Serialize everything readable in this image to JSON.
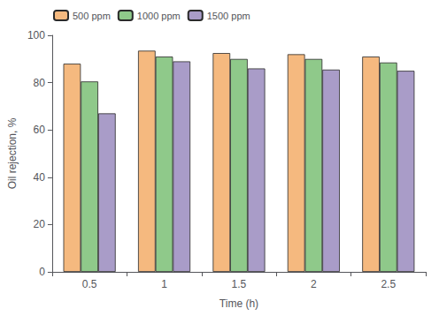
{
  "chart_data": {
    "type": "bar",
    "categories": [
      "0.5",
      "1",
      "1.5",
      "2",
      "2.5"
    ],
    "series": [
      {
        "name": "500 ppm",
        "color": "#F5B97F",
        "values": [
          88,
          93.5,
          92.5,
          92,
          91
        ]
      },
      {
        "name": "1000 ppm",
        "color": "#8FC98A",
        "values": [
          80.5,
          91,
          90,
          90,
          88.5
        ]
      },
      {
        "name": "1500 ppm",
        "color": "#A99CC8",
        "values": [
          67,
          89,
          86,
          85.5,
          85
        ]
      }
    ],
    "xlabel": "Time (h)",
    "ylabel": "Oil rejection, %",
    "ylim": [
      0,
      100
    ],
    "yticks": [
      0,
      20,
      40,
      60,
      80,
      100
    ],
    "grid": false,
    "legend": "upper left"
  }
}
